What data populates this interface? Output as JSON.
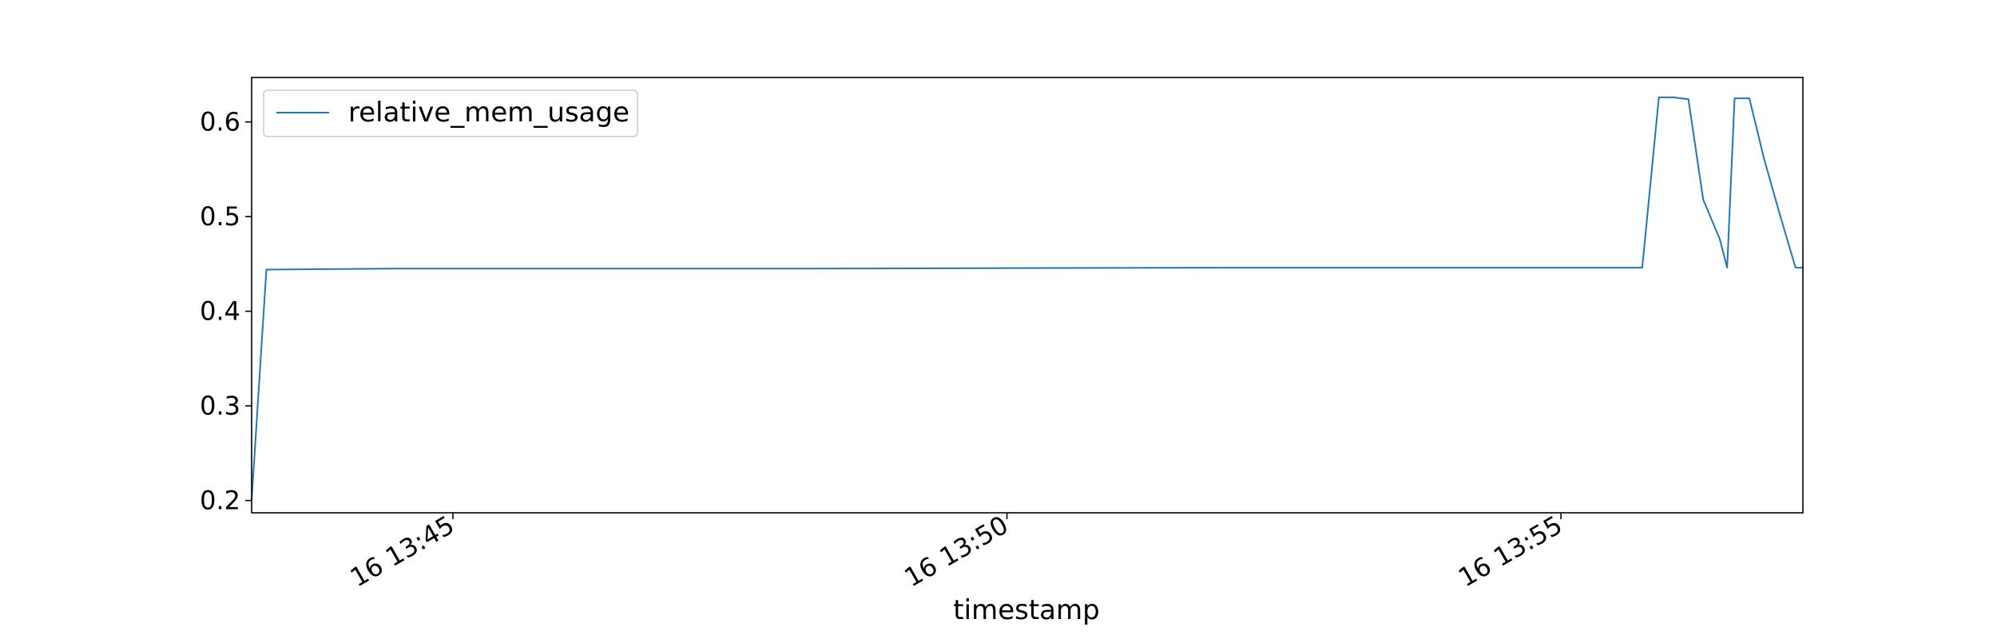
{
  "chart_data": {
    "type": "line",
    "title": "",
    "xlabel": "timestamp",
    "ylabel": "",
    "grid": false,
    "legend_position": "top-left",
    "xlim": [
      "16 13:43:11",
      "16 13:57:11"
    ],
    "ylim": [
      0.187,
      0.647
    ],
    "x_ticks": [
      {
        "value": "16 13:45:00",
        "label": "16 13:45"
      },
      {
        "value": "16 13:50:00",
        "label": "16 13:50"
      },
      {
        "value": "16 13:55:00",
        "label": "16 13:55"
      }
    ],
    "y_ticks": [
      {
        "value": 0.2,
        "label": "0.2"
      },
      {
        "value": 0.3,
        "label": "0.3"
      },
      {
        "value": 0.4,
        "label": "0.4"
      },
      {
        "value": 0.5,
        "label": "0.5"
      },
      {
        "value": 0.6,
        "label": "0.6"
      }
    ],
    "series": [
      {
        "name": "relative_mem_usage",
        "color": "#1f77b4",
        "points": [
          {
            "x": "16 13:43:11",
            "y": 0.2
          },
          {
            "x": "16 13:43:19",
            "y": 0.444
          },
          {
            "x": "16 13:44:30",
            "y": 0.445
          },
          {
            "x": "16 13:48:00",
            "y": 0.445
          },
          {
            "x": "16 13:52:00",
            "y": 0.446
          },
          {
            "x": "16 13:56:30",
            "y": 0.446
          },
          {
            "x": "16 13:55:44",
            "y": 0.446
          },
          {
            "x": "16 13:55:53",
            "y": 0.626
          },
          {
            "x": "16 13:56:01",
            "y": 0.626
          },
          {
            "x": "16 13:56:09",
            "y": 0.624
          },
          {
            "x": "16 13:56:17",
            "y": 0.518
          },
          {
            "x": "16 13:56:26",
            "y": 0.476
          },
          {
            "x": "16 13:56:34",
            "y": 0.625
          },
          {
            "x": "16 13:56:42",
            "y": 0.625
          },
          {
            "x": "16 13:56:50",
            "y": 0.561
          },
          {
            "x": "16 13:56:58",
            "y": 0.506
          },
          {
            "x": "16 13:57:07",
            "y": 0.446
          },
          {
            "x": "16 13:57:11",
            "y": 0.446
          }
        ]
      }
    ]
  }
}
